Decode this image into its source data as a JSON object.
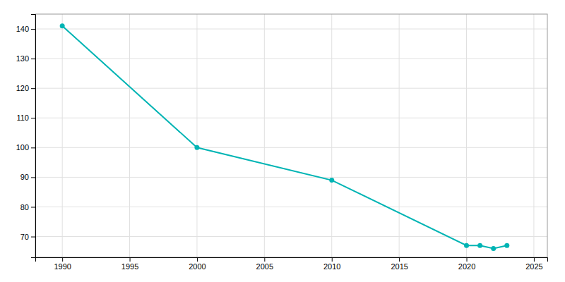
{
  "chart_data": {
    "type": "line",
    "x": [
      1990,
      2000,
      2010,
      2020,
      2021,
      2022,
      2023
    ],
    "values": [
      141,
      100,
      89,
      67,
      67,
      66,
      67
    ],
    "color": "#00b4b4",
    "marker": "circle",
    "xlim": [
      1988,
      2026
    ],
    "ylim": [
      63,
      145
    ],
    "xticks": [
      1990,
      1995,
      2000,
      2005,
      2010,
      2015,
      2020,
      2025
    ],
    "yticks": [
      70,
      80,
      90,
      100,
      110,
      120,
      130,
      140
    ],
    "grid": true
  }
}
